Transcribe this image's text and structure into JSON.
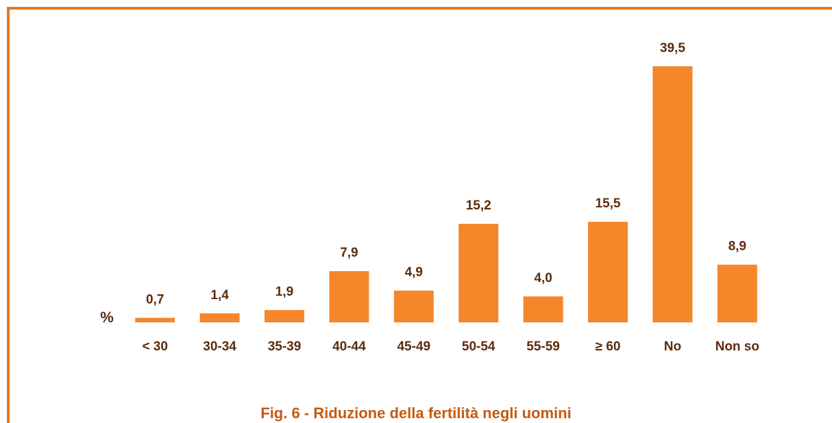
{
  "chart_data": {
    "type": "bar",
    "title": "Fig. 6 - Riduzione della fertilità negli uomini",
    "y_label": "%",
    "categories": [
      "< 30",
      "30-34",
      "35-39",
      "40-44",
      "45-49",
      "50-54",
      "55-59",
      "≥ 60",
      "No",
      "Non so"
    ],
    "values": [
      0.7,
      1.4,
      1.9,
      7.9,
      4.9,
      15.2,
      4.0,
      15.5,
      39.5,
      8.9
    ],
    "value_labels": [
      "0,7",
      "1,4",
      "1,9",
      "7,9",
      "4,9",
      "15,2",
      "4,0",
      "15,5",
      "39,5",
      "8,9"
    ],
    "color": "#f5862a",
    "ylim": [
      0,
      40
    ]
  }
}
